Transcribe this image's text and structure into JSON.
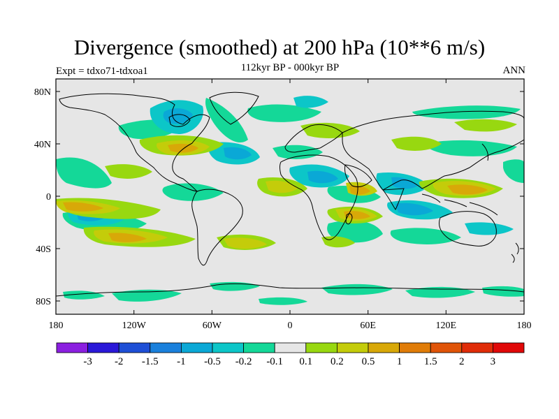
{
  "title": "Divergence (smoothed) at 200 hPa (10**6 m/s)",
  "subtitle": "112kyr BP - 000kyr BP",
  "experiment": "Expt = tdxo71-tdxoa1",
  "period": "ANN",
  "map": {
    "lon_ticks": [
      "180",
      "120W",
      "60W",
      "0",
      "60E",
      "120E",
      "180"
    ],
    "lat_ticks": [
      "80N",
      "40N",
      "0",
      "40S",
      "80S"
    ],
    "land_color": "#e6e6e6"
  },
  "colorbar": {
    "colors": [
      "#8b1fe0",
      "#2a18d8",
      "#1e4fd6",
      "#1a80dc",
      "#0aa8d6",
      "#0cc6c8",
      "#14d898",
      "#e6e6e6",
      "#98d810",
      "#c4cc0a",
      "#d8a808",
      "#e07c08",
      "#e05408",
      "#e02c08",
      "#e00808"
    ],
    "labels": [
      "-3",
      "-2",
      "-1.5",
      "-1",
      "-0.5",
      "-0.2",
      "-0.1",
      "0.1",
      "0.2",
      "0.5",
      "1",
      "1.5",
      "2",
      "3"
    ]
  }
}
